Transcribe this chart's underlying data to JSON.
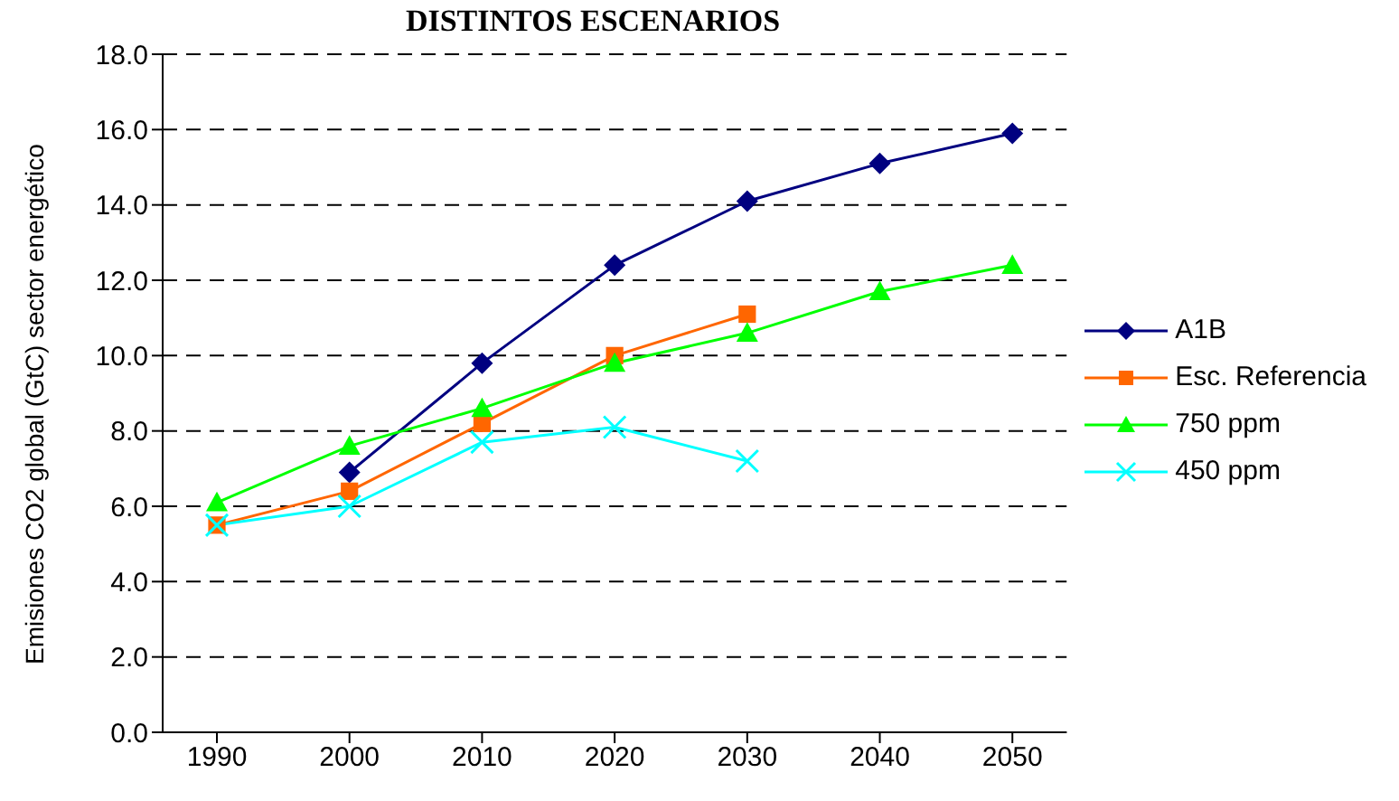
{
  "chart_data": {
    "type": "line",
    "title": "DISTINTOS ESCENARIOS",
    "ylabel": "Emisiones CO2 global (GtC) sector energético",
    "categories": [
      "1990",
      "2000",
      "2010",
      "2020",
      "2030",
      "2040",
      "2050"
    ],
    "series": [
      {
        "name": "A1B",
        "color": "#000080",
        "marker": "diamond",
        "values": [
          null,
          6.9,
          9.8,
          12.4,
          14.1,
          15.1,
          15.9
        ]
      },
      {
        "name": "Esc. Referencia",
        "color": "#ff6600",
        "marker": "square",
        "values": [
          5.5,
          6.4,
          8.2,
          10.0,
          11.1,
          null,
          null
        ]
      },
      {
        "name": "750 ppm",
        "color": "#00ff00",
        "marker": "triangle",
        "values": [
          6.1,
          7.6,
          8.6,
          9.8,
          10.6,
          11.7,
          12.4
        ]
      },
      {
        "name": "450 ppm",
        "color": "#00ffff",
        "marker": "cross",
        "values": [
          5.5,
          6.0,
          7.7,
          8.1,
          7.2,
          null,
          null
        ]
      }
    ],
    "ylim": [
      0,
      18
    ],
    "yticks": [
      {
        "value": 0,
        "label": "0.0"
      },
      {
        "value": 2,
        "label": "2.0"
      },
      {
        "value": 4,
        "label": "4.0"
      },
      {
        "value": 6,
        "label": "6.0"
      },
      {
        "value": 8,
        "label": "8.0"
      },
      {
        "value": 10,
        "label": "10.0"
      },
      {
        "value": 12,
        "label": "12.0"
      },
      {
        "value": 14,
        "label": "14.0"
      },
      {
        "value": 16,
        "label": "16.0"
      },
      {
        "value": 18,
        "label": "18.0"
      }
    ],
    "grid": "y",
    "legend": "right",
    "line_style": "solid"
  }
}
